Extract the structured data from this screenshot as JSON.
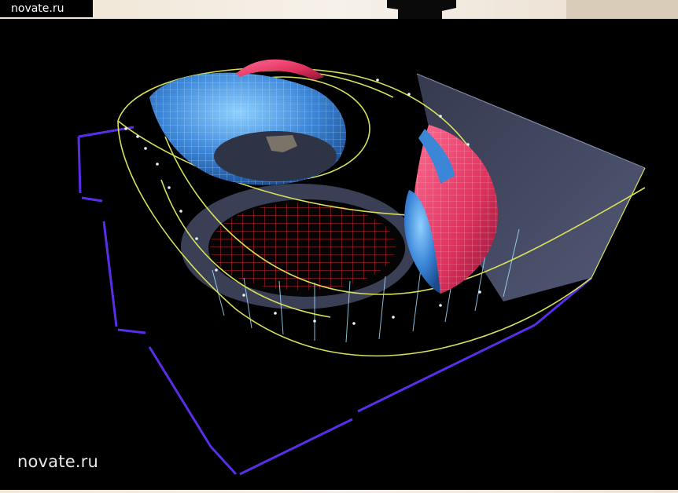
{
  "image": {
    "subject": "3D wireframe architectural render of a stadium model",
    "colors": {
      "background": "#000000",
      "wireframe_yellow": "#d8e05a",
      "wireframe_cyan": "#9fe0ff",
      "shell_blue": "#3c86d8",
      "shell_pink": "#e0305e",
      "grid_red": "#b01a2a",
      "base_purple": "#5a2ee8",
      "slab_slate": "#4d5370"
    }
  },
  "watermarks": {
    "top": "novate.ru",
    "bottom": "novate.ru"
  }
}
